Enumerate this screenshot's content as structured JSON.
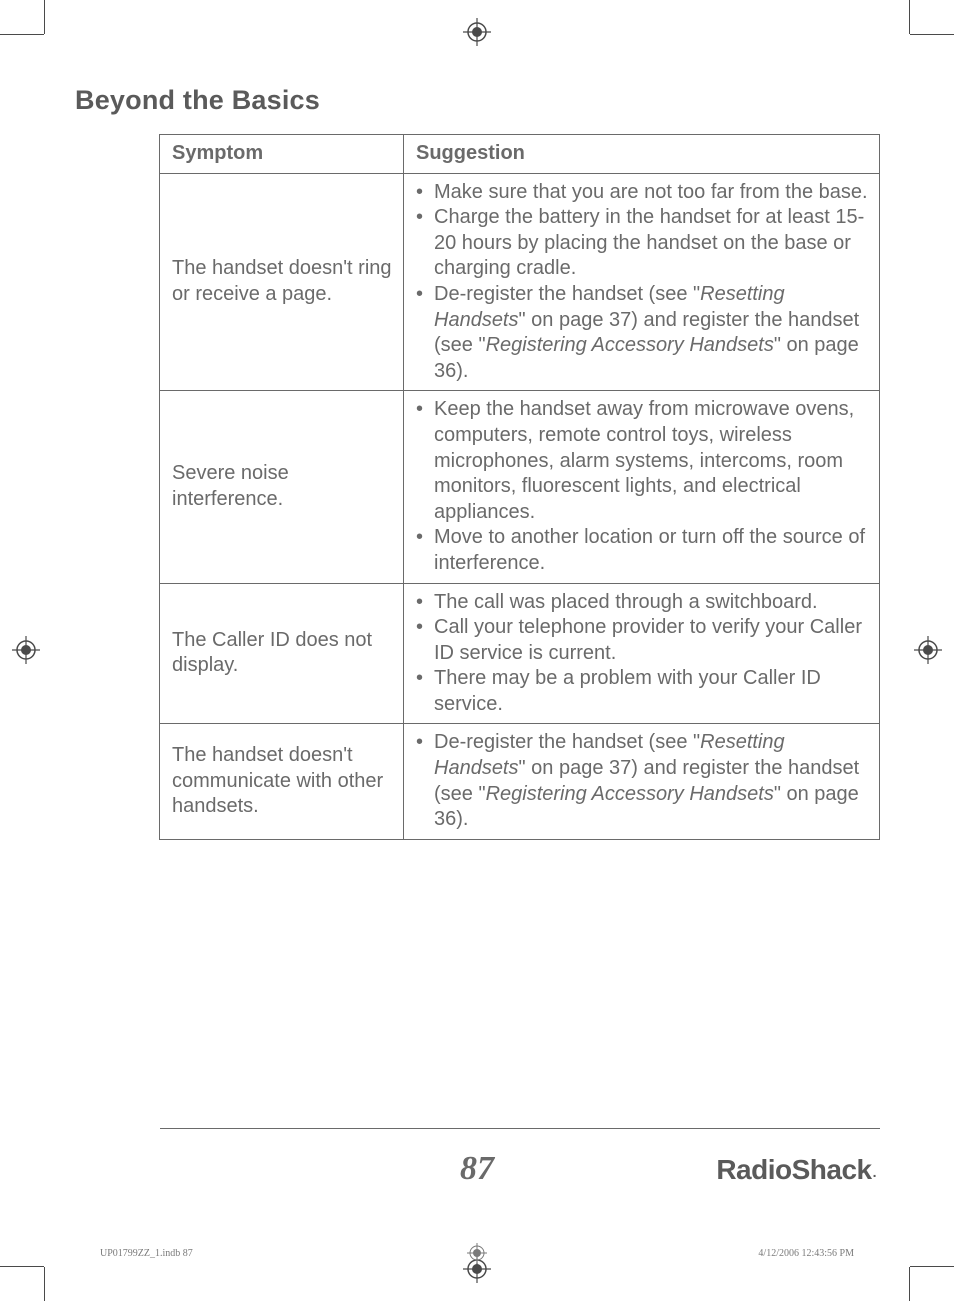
{
  "section_title": "Beyond the Basics",
  "table": {
    "header": {
      "symptom": "Symptom",
      "suggestion": "Suggestion"
    },
    "rows": [
      {
        "symptom": "The handset doesn't ring or receive a page.",
        "suggestions": [
          "Make sure that you are not too far from the base.",
          "Charge the battery in the handset for at least 15-20 hours by placing the handset on the base or charging cradle.",
          "De-register the handset (see \"<i>Resetting Handsets</i>\" on page 37) and register the handset (see \"<i>Registering Accessory Handsets</i>\" on page 36)."
        ]
      },
      {
        "symptom": "Severe noise interference.",
        "suggestions": [
          "Keep the handset away from microwave ovens, computers, remote control toys, wireless microphones, alarm systems, intercoms, room monitors, fluorescent lights, and electrical appliances.",
          "Move to another location or turn off the source of interference."
        ]
      },
      {
        "symptom": "The Caller ID does not display.",
        "suggestions": [
          "The call was placed through a switchboard.",
          "Call your telephone provider to verify your Caller ID service is current.",
          "There may be a problem with your Caller ID service."
        ]
      },
      {
        "symptom": "The handset doesn't communicate with other handsets.",
        "suggestions": [
          "De-register the handset (see \"<i>Resetting Handsets</i>\" on page 37) and register the handset (see \"<i>Registering Accessory Handsets</i>\" on page 36)."
        ]
      }
    ]
  },
  "page_number": "87",
  "brand": "RadioShack",
  "slug_left": "UP01799ZZ_1.indb   87",
  "slug_right": "4/12/2006   12:43:56 PM",
  "colors": {
    "text": "#6a6a6a",
    "heading": "#5a5a5a",
    "rule": "#6a6a6a",
    "background": "#ffffff"
  }
}
